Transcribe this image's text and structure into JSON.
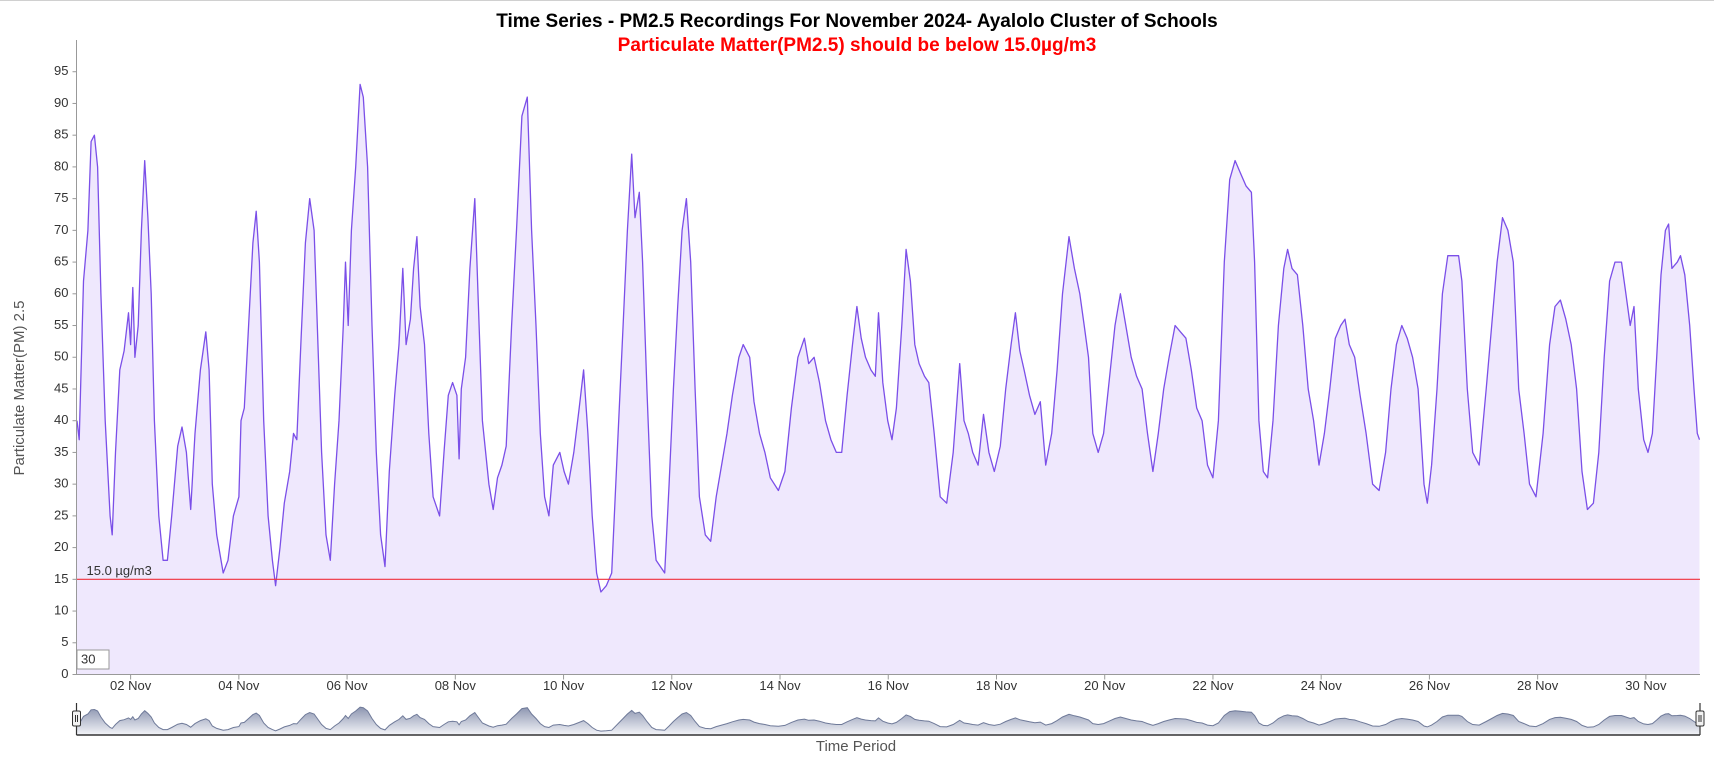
{
  "chart_data": {
    "type": "area",
    "title": "Time Series - PM2.5 Recordings For November 2024- Ayalolo Cluster of Schools",
    "subtitle": "Particulate Matter(PM2.5) should be below 15.0µg/m3",
    "ylabel": "Particulate Matter(PM) 2.5",
    "xlabel": "Time Period",
    "range_input": "30",
    "line_color": "#7b4fe8",
    "fill_color": "#efe8fd",
    "threshold": {
      "value": 15,
      "label": "15.0 µg/m3",
      "color": "#f0303c"
    },
    "xlim": [
      1,
      31
    ],
    "ylim": [
      0,
      100
    ],
    "xticks": [
      {
        "value": 2,
        "label": "02 Nov"
      },
      {
        "value": 4,
        "label": "04 Nov"
      },
      {
        "value": 6,
        "label": "06 Nov"
      },
      {
        "value": 8,
        "label": "08 Nov"
      },
      {
        "value": 10,
        "label": "10 Nov"
      },
      {
        "value": 12,
        "label": "12 Nov"
      },
      {
        "value": 14,
        "label": "14 Nov"
      },
      {
        "value": 16,
        "label": "16 Nov"
      },
      {
        "value": 18,
        "label": "18 Nov"
      },
      {
        "value": 20,
        "label": "20 Nov"
      },
      {
        "value": 22,
        "label": "22 Nov"
      },
      {
        "value": 24,
        "label": "24 Nov"
      },
      {
        "value": 26,
        "label": "26 Nov"
      },
      {
        "value": 28,
        "label": "28 Nov"
      },
      {
        "value": 30,
        "label": "30 Nov"
      }
    ],
    "yticks": [
      0,
      5,
      10,
      15,
      20,
      25,
      30,
      35,
      40,
      45,
      50,
      55,
      60,
      65,
      70,
      75,
      80,
      85,
      90,
      95
    ],
    "x": [
      1.01,
      1.05,
      1.13,
      1.21,
      1.27,
      1.33,
      1.39,
      1.45,
      1.53,
      1.62,
      1.66,
      1.72,
      1.8,
      1.88,
      1.96,
      2.0,
      2.04,
      2.08,
      2.14,
      2.2,
      2.26,
      2.32,
      2.38,
      2.44,
      2.52,
      2.6,
      2.68,
      2.76,
      2.87,
      2.95,
      3.03,
      3.11,
      3.19,
      3.29,
      3.39,
      3.45,
      3.51,
      3.59,
      3.71,
      3.8,
      3.9,
      4.0,
      4.04,
      4.1,
      4.18,
      4.26,
      4.32,
      4.38,
      4.46,
      4.54,
      4.62,
      4.68,
      4.76,
      4.84,
      4.94,
      5.01,
      5.07,
      5.15,
      5.23,
      5.31,
      5.39,
      5.45,
      5.53,
      5.61,
      5.69,
      5.77,
      5.85,
      5.93,
      5.97,
      6.02,
      6.08,
      6.16,
      6.24,
      6.3,
      6.38,
      6.46,
      6.54,
      6.62,
      6.7,
      6.78,
      6.88,
      6.96,
      7.03,
      7.09,
      7.17,
      7.23,
      7.29,
      7.35,
      7.43,
      7.51,
      7.59,
      7.71,
      7.79,
      7.87,
      7.95,
      8.03,
      8.07,
      8.11,
      8.19,
      8.27,
      8.36,
      8.42,
      8.5,
      8.62,
      8.7,
      8.78,
      8.86,
      8.94,
      9.04,
      9.13,
      9.23,
      9.33,
      9.41,
      9.49,
      9.57,
      9.65,
      9.73,
      9.81,
      9.93,
      10.01,
      10.09,
      10.19,
      10.29,
      10.37,
      10.45,
      10.53,
      10.61,
      10.69,
      10.79,
      10.89,
      11.02,
      11.1,
      11.18,
      11.26,
      11.32,
      11.4,
      11.46,
      11.54,
      11.63,
      11.71,
      11.79,
      11.87,
      11.95,
      12.03,
      12.11,
      12.19,
      12.27,
      12.35,
      12.43,
      12.51,
      12.62,
      12.72,
      12.82,
      12.92,
      13.02,
      13.12,
      13.24,
      13.32,
      13.44,
      13.52,
      13.62,
      13.72,
      13.82,
      13.97,
      14.09,
      14.21,
      14.33,
      14.45,
      14.53,
      14.63,
      14.73,
      14.84,
      14.94,
      15.04,
      15.14,
      15.24,
      15.34,
      15.42,
      15.5,
      15.58,
      15.68,
      15.76,
      15.82,
      15.9,
      15.99,
      16.07,
      16.15,
      16.25,
      16.33,
      16.41,
      16.49,
      16.57,
      16.67,
      16.75,
      16.85,
      16.96,
      17.08,
      17.2,
      17.32,
      17.4,
      17.48,
      17.56,
      17.66,
      17.76,
      17.86,
      17.96,
      18.07,
      18.17,
      18.27,
      18.35,
      18.43,
      18.51,
      18.61,
      18.71,
      18.81,
      18.91,
      19.02,
      19.12,
      19.22,
      19.34,
      19.44,
      19.54,
      19.62,
      19.7,
      19.78,
      19.88,
      19.98,
      20.08,
      20.19,
      20.29,
      20.39,
      20.49,
      20.59,
      20.69,
      20.79,
      20.89,
      20.99,
      21.09,
      21.19,
      21.3,
      21.4,
      21.5,
      21.6,
      21.7,
      21.8,
      21.9,
      22.0,
      22.1,
      22.21,
      22.31,
      22.41,
      22.51,
      22.61,
      22.71,
      22.77,
      22.85,
      22.93,
      23.01,
      23.11,
      23.21,
      23.31,
      23.38,
      23.46,
      23.56,
      23.66,
      23.76,
      23.86,
      23.96,
      24.06,
      24.16,
      24.26,
      24.36,
      24.44,
      24.52,
      24.62,
      24.72,
      24.83,
      24.95,
      25.07,
      25.19,
      25.29,
      25.39,
      25.49,
      25.59,
      25.69,
      25.79,
      25.9,
      25.96,
      26.04,
      26.14,
      26.24,
      26.34,
      26.44,
      26.54,
      26.6,
      26.7,
      26.8,
      26.92,
      27.05,
      27.15,
      27.25,
      27.35,
      27.45,
      27.55,
      27.65,
      27.75,
      27.85,
      27.97,
      28.1,
      28.22,
      28.32,
      28.42,
      28.52,
      28.62,
      28.72,
      28.82,
      28.92,
      29.03,
      29.13,
      29.23,
      29.33,
      29.43,
      29.55,
      29.63,
      29.71,
      29.78,
      29.86,
      29.96,
      30.04,
      30.12,
      30.2,
      30.28,
      30.36,
      30.42,
      30.48,
      30.58,
      30.64,
      30.72,
      30.81,
      30.89,
      30.95,
      30.99
    ],
    "values": [
      40,
      37,
      62,
      70,
      84,
      85,
      80,
      60,
      40,
      25,
      22,
      35,
      48,
      51,
      57,
      52,
      61,
      50,
      55,
      70,
      81,
      72,
      60,
      40,
      25,
      18,
      18,
      25,
      36,
      39,
      35,
      26,
      38,
      48,
      54,
      48,
      30,
      22,
      16,
      18,
      25,
      28,
      40,
      42,
      55,
      68,
      73,
      65,
      40,
      25,
      18,
      14,
      20,
      27,
      32,
      38,
      37,
      53,
      68,
      75,
      70,
      55,
      35,
      22,
      18,
      30,
      40,
      55,
      65,
      55,
      70,
      80,
      93,
      91,
      80,
      55,
      35,
      22,
      17,
      32,
      44,
      52,
      64,
      52,
      56,
      64,
      69,
      58,
      52,
      38,
      28,
      25,
      35,
      44,
      46,
      44,
      34,
      45,
      50,
      64,
      75,
      60,
      40,
      30,
      26,
      31,
      33,
      36,
      55,
      70,
      88,
      91,
      70,
      55,
      38,
      28,
      25,
      33,
      35,
      32,
      30,
      35,
      42,
      48,
      38,
      25,
      16,
      13,
      14,
      16,
      40,
      55,
      70,
      82,
      72,
      76,
      65,
      45,
      25,
      18,
      17,
      16,
      30,
      45,
      58,
      70,
      75,
      65,
      45,
      28,
      22,
      21,
      28,
      33,
      38,
      44,
      50,
      52,
      50,
      43,
      38,
      35,
      31,
      29,
      32,
      42,
      50,
      53,
      49,
      50,
      46,
      40,
      37,
      35,
      35,
      44,
      52,
      58,
      53,
      50,
      48,
      47,
      57,
      46,
      40,
      37,
      42,
      55,
      67,
      62,
      52,
      49,
      47,
      46,
      38,
      28,
      27,
      35,
      49,
      40,
      38,
      35,
      33,
      41,
      35,
      32,
      36,
      45,
      52,
      57,
      51,
      48,
      44,
      41,
      43,
      33,
      38,
      48,
      60,
      69,
      64,
      60,
      55,
      50,
      38,
      35,
      38,
      46,
      55,
      60,
      55,
      50,
      47,
      45,
      38,
      32,
      38,
      45,
      50,
      55,
      54,
      53,
      48,
      42,
      40,
      33,
      31,
      40,
      65,
      78,
      81,
      79,
      77,
      76,
      65,
      40,
      32,
      31,
      40,
      55,
      64,
      67,
      64,
      63,
      55,
      45,
      40,
      33,
      38,
      45,
      53,
      55,
      56,
      52,
      50,
      44,
      38,
      30,
      29,
      35,
      45,
      52,
      55,
      53,
      50,
      45,
      30,
      27,
      33,
      45,
      60,
      66,
      66,
      66,
      62,
      45,
      35,
      33,
      45,
      55,
      65,
      72,
      70,
      65,
      45,
      38,
      30,
      28,
      38,
      52,
      58,
      59,
      56,
      52,
      45,
      32,
      26,
      27,
      35,
      50,
      62,
      65,
      65,
      60,
      55,
      58,
      45,
      37,
      35,
      38,
      50,
      63,
      70,
      71,
      64,
      65,
      66,
      63,
      55,
      45,
      38,
      37
    ]
  }
}
